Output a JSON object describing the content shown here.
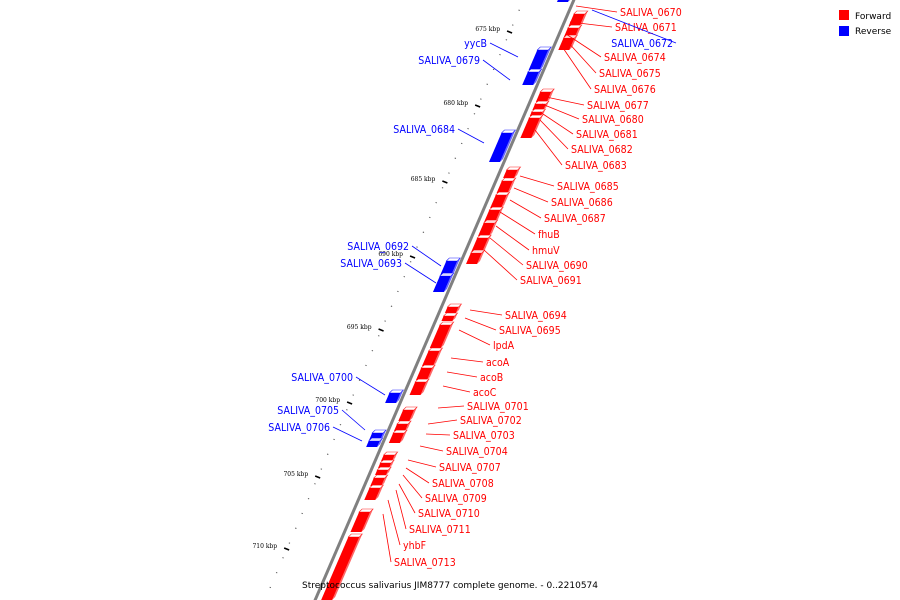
{
  "title": "Streptococcus salivarius JIM8777 complete genome. - 0..2210574",
  "legend": [
    {
      "label": "Forward",
      "color": "#ff0000"
    },
    {
      "label": "Reverse",
      "color": "#0000ff"
    }
  ],
  "colors": {
    "forward": "#ff0000",
    "reverse": "#0000ff",
    "backbone": "#808080"
  },
  "tick_labels": [
    "675 kbp",
    "680 kbp",
    "685 kbp",
    "690 kbp",
    "695 kbp",
    "700 kbp",
    "705 kbp",
    "710 kbp"
  ],
  "forward_labels": [
    "SALIVA_0670",
    "SALIVA_0671",
    "SALIVA_0674",
    "SALIVA_0675",
    "SALIVA_0676",
    "SALIVA_0677",
    "SALIVA_0680",
    "SALIVA_0681",
    "SALIVA_0682",
    "SALIVA_0683",
    "SALIVA_0685",
    "SALIVA_0686",
    "SALIVA_0687",
    "fhuB",
    "hmuV",
    "SALIVA_0690",
    "SALIVA_0691",
    "SALIVA_0694",
    "SALIVA_0695",
    "lpdA",
    "acoA",
    "acoB",
    "acoC",
    "SALIVA_0701",
    "SALIVA_0702",
    "SALIVA_0703",
    "SALIVA_0704",
    "SALIVA_0707",
    "SALIVA_0708",
    "SALIVA_0709",
    "SALIVA_0710",
    "SALIVA_0711",
    "yhbF",
    "SALIVA_0713"
  ],
  "reverse_labels": [
    "SALIVA_0672",
    "yycB",
    "SALIVA_0679",
    "SALIVA_0684",
    "SALIVA_0692",
    "SALIVA_0693",
    "SALIVA_0700",
    "SALIVA_0705",
    "SALIVA_0706"
  ]
}
